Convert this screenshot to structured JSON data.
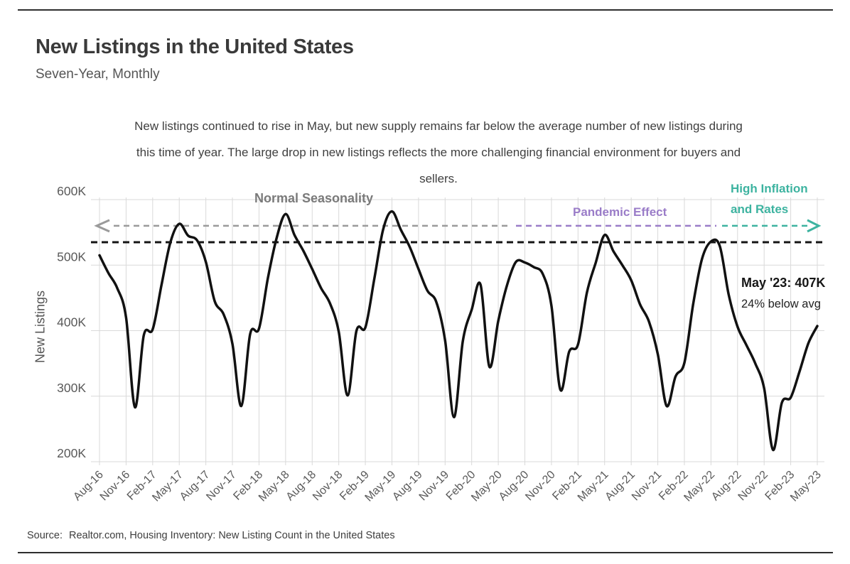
{
  "header": {
    "title": "New Listings in the United States",
    "subtitle": "Seven-Year, Monthly"
  },
  "description": {
    "lines": [
      "New listings continued to rise in May, but new supply remains far below the average number of new listings during",
      "this time of year. The large drop in new listings reflects the more challenging financial environment for buyers and",
      "sellers."
    ]
  },
  "chart": {
    "y_axis_title": "New Listings",
    "annotations": {
      "normal_seasonality": {
        "label": "Normal Seasonality",
        "color": "#7a7a7a"
      },
      "pandemic_effect": {
        "label": "Pandemic Effect",
        "color": "#9a7cc8"
      },
      "high_inflation": {
        "line1": "High Inflation",
        "line2": "and Rates",
        "color": "#3db3a0"
      },
      "callout": {
        "title": "May '23: 407K",
        "subtitle": "24% below avg"
      },
      "arrow_line_value": 560,
      "average_line_value": 535
    },
    "colors": {
      "series": "#111111",
      "grid": "#d9d9d9",
      "average_line": "#141414",
      "normal_arrow": "#9a9a9a",
      "pandemic_arrow": "#9a7cc8",
      "inflation_arrow": "#3db3a0",
      "tick_text": "#595959"
    }
  },
  "chart_data": {
    "type": "line",
    "title": "New Listings in the United States",
    "ylabel": "New Listings",
    "ylim": [
      200,
      600
    ],
    "grid": true,
    "y_ticks": [
      [
        200,
        "200K"
      ],
      [
        300,
        "300K"
      ],
      [
        400,
        "400K"
      ],
      [
        500,
        "500K"
      ],
      [
        600,
        "600K"
      ]
    ],
    "x": [
      "Aug-16",
      "Sep-16",
      "Oct-16",
      "Nov-16",
      "Dec-16",
      "Jan-17",
      "Feb-17",
      "Mar-17",
      "Apr-17",
      "May-17",
      "Jun-17",
      "Jul-17",
      "Aug-17",
      "Sep-17",
      "Oct-17",
      "Nov-17",
      "Dec-17",
      "Jan-18",
      "Feb-18",
      "Mar-18",
      "Apr-18",
      "May-18",
      "Jun-18",
      "Jul-18",
      "Aug-18",
      "Sep-18",
      "Oct-18",
      "Nov-18",
      "Dec-18",
      "Jan-19",
      "Feb-19",
      "Mar-19",
      "Apr-19",
      "May-19",
      "Jun-19",
      "Jul-19",
      "Aug-19",
      "Sep-19",
      "Oct-19",
      "Nov-19",
      "Dec-19",
      "Jan-20",
      "Feb-20",
      "Mar-20",
      "Apr-20",
      "May-20",
      "Jun-20",
      "Jul-20",
      "Aug-20",
      "Sep-20",
      "Oct-20",
      "Nov-20",
      "Dec-20",
      "Jan-21",
      "Feb-21",
      "Mar-21",
      "Apr-21",
      "May-21",
      "Jun-21",
      "Jul-21",
      "Aug-21",
      "Sep-21",
      "Oct-21",
      "Nov-21",
      "Dec-21",
      "Jan-22",
      "Feb-22",
      "Mar-22",
      "Apr-22",
      "May-22",
      "Jun-22",
      "Jul-22",
      "Aug-22",
      "Sep-22",
      "Oct-22",
      "Nov-22",
      "Dec-22",
      "Jan-23",
      "Feb-23",
      "Mar-23",
      "Apr-23",
      "May-23"
    ],
    "values": [
      515,
      488,
      465,
      420,
      283,
      393,
      402,
      470,
      535,
      563,
      545,
      538,
      505,
      445,
      425,
      380,
      285,
      395,
      403,
      480,
      542,
      578,
      546,
      522,
      494,
      465,
      442,
      398,
      301,
      400,
      405,
      478,
      554,
      582,
      554,
      528,
      494,
      461,
      444,
      385,
      268,
      384,
      432,
      470,
      345,
      415,
      470,
      505,
      504,
      497,
      487,
      438,
      310,
      368,
      379,
      458,
      504,
      546,
      521,
      500,
      477,
      440,
      414,
      364,
      285,
      330,
      351,
      441,
      510,
      536,
      529,
      455,
      406,
      378,
      350,
      312,
      218,
      290,
      298,
      338,
      381,
      407
    ],
    "x_tick_every": 3,
    "legend": null
  },
  "source": {
    "label": "Source:",
    "text": "Realtor.com, Housing Inventory: New Listing Count in the United States"
  }
}
